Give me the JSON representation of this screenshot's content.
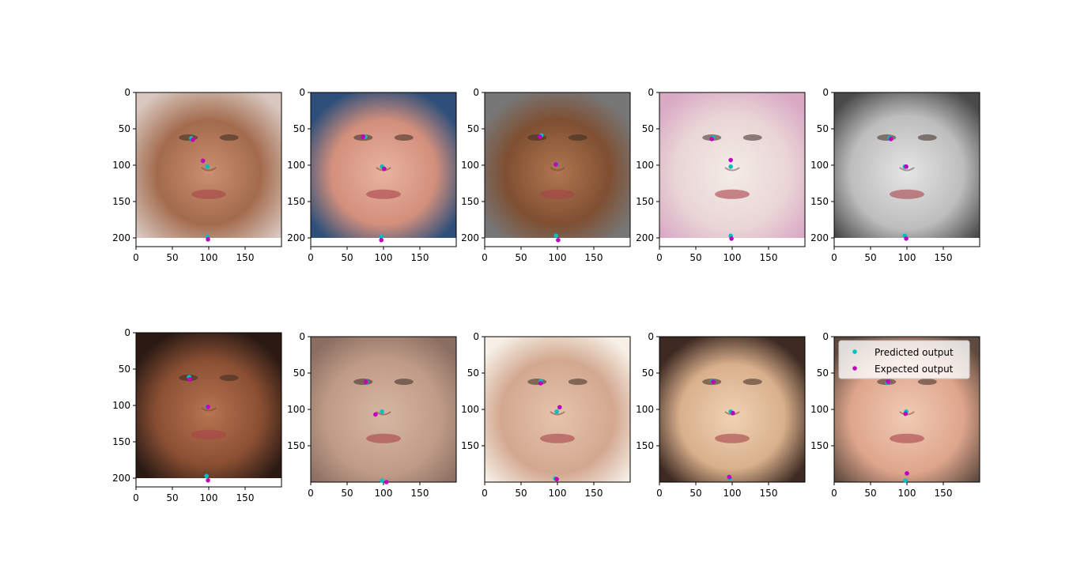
{
  "chart_data": [
    {
      "type": "scatter",
      "background": "face-photo",
      "tone": "warm-grey-hair",
      "xlim": [
        0,
        200
      ],
      "ylim": [
        212,
        0
      ],
      "image_height": 200,
      "xticks": [
        0,
        50,
        100,
        150
      ],
      "yticks": [
        0,
        50,
        100,
        150,
        200
      ],
      "series": [
        {
          "name": "Predicted output",
          "color": "#00bfbf",
          "points": [
            [
              76,
              63
            ],
            [
              98,
              102
            ],
            [
              98,
              198
            ]
          ]
        },
        {
          "name": "Expected output",
          "color": "#bf00bf",
          "points": [
            [
              78,
              65
            ],
            [
              92,
              94
            ],
            [
              99,
              202
            ]
          ]
        }
      ]
    },
    {
      "type": "scatter",
      "background": "face-photo",
      "tone": "light-blue-bg",
      "xlim": [
        0,
        200
      ],
      "ylim": [
        212,
        0
      ],
      "image_height": 200,
      "xticks": [
        0,
        50,
        100,
        150
      ],
      "yticks": [
        0,
        50,
        100,
        150,
        200
      ],
      "series": [
        {
          "name": "Predicted output",
          "color": "#00bfbf",
          "points": [
            [
              75,
              61
            ],
            [
              98,
              102
            ],
            [
              97,
              198
            ]
          ]
        },
        {
          "name": "Expected output",
          "color": "#bf00bf",
          "points": [
            [
              72,
              61
            ],
            [
              101,
              105
            ],
            [
              97,
              203
            ]
          ]
        }
      ]
    },
    {
      "type": "scatter",
      "background": "face-photo",
      "tone": "dark-grey-bg",
      "xlim": [
        0,
        200
      ],
      "ylim": [
        212,
        0
      ],
      "image_height": 200,
      "xticks": [
        0,
        50,
        100,
        150
      ],
      "yticks": [
        0,
        50,
        100,
        150,
        200
      ],
      "series": [
        {
          "name": "Predicted output",
          "color": "#00bfbf",
          "points": [
            [
              78,
              59
            ],
            [
              99,
              99
            ],
            [
              98,
              197
            ]
          ]
        },
        {
          "name": "Expected output",
          "color": "#bf00bf",
          "points": [
            [
              76,
              61
            ],
            [
              98,
              99
            ],
            [
              101,
              203
            ]
          ]
        }
      ]
    },
    {
      "type": "scatter",
      "background": "face-photo",
      "tone": "pale-pink",
      "xlim": [
        0,
        200
      ],
      "ylim": [
        212,
        0
      ],
      "image_height": 200,
      "xticks": [
        0,
        50,
        100,
        150
      ],
      "yticks": [
        0,
        50,
        100,
        150,
        200
      ],
      "series": [
        {
          "name": "Predicted output",
          "color": "#00bfbf",
          "points": [
            [
              74,
              62
            ],
            [
              98,
              102
            ],
            [
              98,
              197
            ]
          ]
        },
        {
          "name": "Expected output",
          "color": "#bf00bf",
          "points": [
            [
              72,
              64
            ],
            [
              98,
              93
            ],
            [
              99,
              201
            ]
          ]
        }
      ]
    },
    {
      "type": "scatter",
      "background": "face-photo",
      "tone": "greyscale",
      "xlim": [
        0,
        200
      ],
      "ylim": [
        212,
        0
      ],
      "image_height": 200,
      "xticks": [
        0,
        50,
        100,
        150
      ],
      "yticks": [
        0,
        50,
        100,
        150,
        200
      ],
      "series": [
        {
          "name": "Predicted output",
          "color": "#00bfbf",
          "points": [
            [
              76,
              63
            ],
            [
              97,
              102
            ],
            [
              97,
              197
            ]
          ]
        },
        {
          "name": "Expected output",
          "color": "#bf00bf",
          "points": [
            [
              78,
              64
            ],
            [
              99,
              102
            ],
            [
              99,
              201
            ]
          ]
        }
      ]
    },
    {
      "type": "scatter",
      "background": "face-photo",
      "tone": "dark-brown",
      "xlim": [
        0,
        200
      ],
      "ylim": [
        212,
        0
      ],
      "image_height": 200,
      "xticks": [
        0,
        50,
        100,
        150
      ],
      "yticks": [
        0,
        50,
        100,
        150,
        200
      ],
      "series": [
        {
          "name": "Predicted output",
          "color": "#00bfbf",
          "points": [
            [
              73,
              61
            ],
            [
              98,
              102
            ],
            [
              97,
              197
            ]
          ]
        },
        {
          "name": "Expected output",
          "color": "#bf00bf",
          "points": [
            [
              74,
              64
            ],
            [
              99,
              102
            ],
            [
              99,
              203
            ]
          ]
        }
      ]
    },
    {
      "type": "scatter",
      "background": "face-photo",
      "tone": "blurry-beige",
      "xlim": [
        0,
        200
      ],
      "ylim": [
        200,
        0
      ],
      "image_height": 200,
      "xticks": [
        0,
        50,
        100,
        150
      ],
      "yticks": [
        0,
        50,
        100,
        150
      ],
      "series": [
        {
          "name": "Predicted output",
          "color": "#00bfbf",
          "points": [
            [
              77,
              62
            ],
            [
              98,
              103
            ],
            [
              98,
              198
            ]
          ]
        },
        {
          "name": "Expected output",
          "color": "#bf00bf",
          "points": [
            [
              76,
              62
            ],
            [
              89,
              107
            ],
            [
              104,
              200
            ]
          ]
        }
      ]
    },
    {
      "type": "scatter",
      "background": "face-photo",
      "tone": "light-beige",
      "xlim": [
        0,
        200
      ],
      "ylim": [
        200,
        0
      ],
      "image_height": 200,
      "xticks": [
        0,
        50,
        100,
        150
      ],
      "yticks": [
        0,
        50,
        100,
        150
      ],
      "series": [
        {
          "name": "Predicted output",
          "color": "#00bfbf",
          "points": [
            [
              77,
              61
            ],
            [
              99,
              103
            ],
            [
              97,
              195
            ]
          ]
        },
        {
          "name": "Expected output",
          "color": "#bf00bf",
          "points": [
            [
              77,
              64
            ],
            [
              103,
              97
            ],
            [
              99,
              196
            ]
          ]
        }
      ]
    },
    {
      "type": "scatter",
      "background": "face-photo",
      "tone": "warm-cream",
      "xlim": [
        0,
        200
      ],
      "ylim": [
        200,
        0
      ],
      "image_height": 200,
      "xticks": [
        0,
        50,
        100,
        150
      ],
      "yticks": [
        0,
        50,
        100,
        150
      ],
      "series": [
        {
          "name": "Predicted output",
          "color": "#00bfbf",
          "points": [
            [
              73,
              61
            ],
            [
              98,
              103
            ],
            [
              97,
              195
            ]
          ]
        },
        {
          "name": "Expected output",
          "color": "#bf00bf",
          "points": [
            [
              74,
              62
            ],
            [
              101,
              105
            ],
            [
              96,
              193
            ]
          ]
        }
      ]
    },
    {
      "type": "scatter",
      "background": "face-photo",
      "tone": "rosy",
      "xlim": [
        0,
        200
      ],
      "ylim": [
        200,
        0
      ],
      "image_height": 200,
      "xticks": [
        0,
        50,
        100,
        150
      ],
      "yticks": [
        0,
        50,
        100,
        150
      ],
      "legend": "upper-right",
      "series": [
        {
          "name": "Predicted output",
          "color": "#00bfbf",
          "points": [
            [
              73,
              63
            ],
            [
              99,
              103
            ],
            [
              98,
              198
            ]
          ]
        },
        {
          "name": "Expected output",
          "color": "#bf00bf",
          "points": [
            [
              74,
              62
            ],
            [
              98,
              106
            ],
            [
              100,
              188
            ]
          ]
        }
      ]
    }
  ]
}
